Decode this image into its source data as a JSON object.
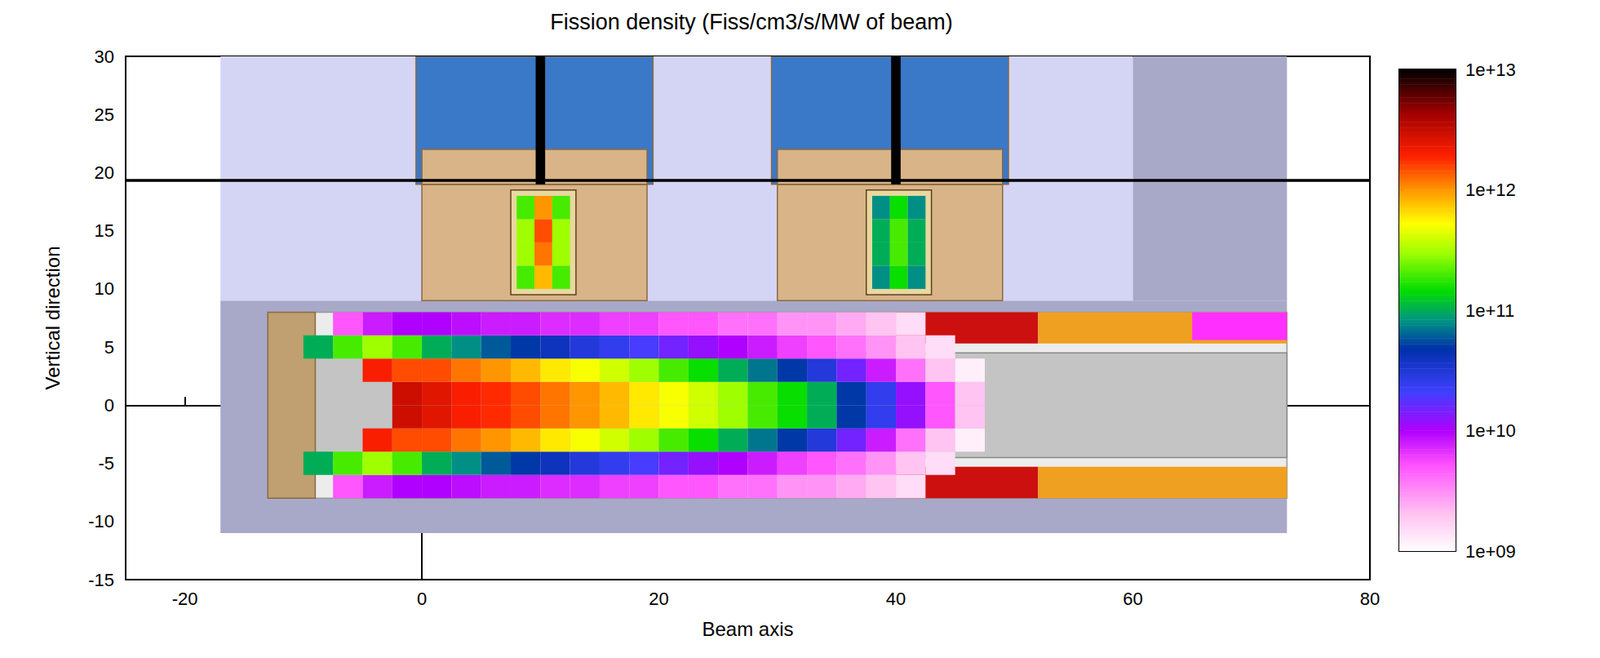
{
  "chart_data": {
    "type": "heatmap",
    "title": "Fission density (Fiss/cm3/s/MW of beam)",
    "x_label": "Beam axis",
    "y_label": "Vertical direction",
    "xlim": [
      -25,
      80
    ],
    "xticks": [
      -20,
      0,
      20,
      40,
      60,
      80
    ],
    "ylim": [
      -15,
      30
    ],
    "yticks": [
      -15,
      -10,
      -5,
      0,
      5,
      10,
      15,
      20,
      25,
      30
    ],
    "heatmaps": [
      {
        "x_edges": [
          -10,
          -7.5,
          -5,
          -2.5,
          0,
          2.5,
          5,
          7.5,
          10,
          12.5,
          15,
          17.5,
          20,
          22.5,
          25,
          27.5,
          30,
          32.5,
          35,
          37.5,
          40,
          42.5,
          45,
          47.5,
          50
        ],
        "y_edges": [
          -8,
          -6,
          -4,
          -2,
          0,
          2,
          4,
          6,
          8
        ],
        "values": [
          [
            null,
            5000000000.0,
            8000000000.0,
            10000000000.0,
            10000000000.0,
            9000000000.0,
            8000000000.0,
            8000000000.0,
            7000000000.0,
            7000000000.0,
            6000000000.0,
            6000000000.0,
            5000000000.0,
            5000000000.0,
            4000000000.0,
            4000000000.0,
            3000000000.0,
            3000000000.0,
            2500000000.0,
            2000000000.0,
            1500000000.0,
            null,
            null,
            null
          ],
          [
            100000000000.0,
            200000000000.0,
            300000000000.0,
            200000000000.0,
            100000000000.0,
            80000000000.0,
            60000000000.0,
            50000000000.0,
            40000000000.0,
            30000000000.0,
            25000000000.0,
            20000000000.0,
            15000000000.0,
            12000000000.0,
            10000000000.0,
            8000000000.0,
            6000000000.0,
            5000000000.0,
            4000000000.0,
            3000000000.0,
            2000000000.0,
            1500000000.0,
            null,
            null
          ],
          [
            null,
            null,
            2000000000000.0,
            1500000000000.0,
            1500000000000.0,
            1200000000000.0,
            1000000000000.0,
            800000000000.0,
            600000000000.0,
            500000000000.0,
            400000000000.0,
            300000000000.0,
            200000000000.0,
            150000000000.0,
            100000000000.0,
            70000000000.0,
            50000000000.0,
            30000000000.0,
            15000000000.0,
            8000000000.0,
            4000000000.0,
            2000000000.0,
            1200000000.0,
            null
          ],
          [
            null,
            null,
            null,
            3000000000000.0,
            2500000000000.0,
            2000000000000.0,
            1800000000000.0,
            1500000000000.0,
            1200000000000.0,
            1000000000000.0,
            800000000000.0,
            600000000000.0,
            500000000000.0,
            400000000000.0,
            300000000000.0,
            200000000000.0,
            150000000000.0,
            100000000000.0,
            50000000000.0,
            25000000000.0,
            12000000000.0,
            5000000000.0,
            2000000000.0,
            null
          ],
          [
            null,
            null,
            null,
            3000000000000.0,
            2500000000000.0,
            2000000000000.0,
            1800000000000.0,
            1500000000000.0,
            1200000000000.0,
            1000000000000.0,
            800000000000.0,
            600000000000.0,
            500000000000.0,
            400000000000.0,
            300000000000.0,
            200000000000.0,
            150000000000.0,
            100000000000.0,
            50000000000.0,
            25000000000.0,
            12000000000.0,
            5000000000.0,
            2000000000.0,
            null
          ],
          [
            null,
            null,
            2000000000000.0,
            1500000000000.0,
            1500000000000.0,
            1200000000000.0,
            1000000000000.0,
            800000000000.0,
            600000000000.0,
            500000000000.0,
            400000000000.0,
            300000000000.0,
            200000000000.0,
            150000000000.0,
            100000000000.0,
            70000000000.0,
            50000000000.0,
            30000000000.0,
            15000000000.0,
            8000000000.0,
            4000000000.0,
            2000000000.0,
            1200000000.0,
            null
          ],
          [
            100000000000.0,
            200000000000.0,
            300000000000.0,
            200000000000.0,
            100000000000.0,
            80000000000.0,
            60000000000.0,
            50000000000.0,
            40000000000.0,
            30000000000.0,
            25000000000.0,
            20000000000.0,
            15000000000.0,
            12000000000.0,
            10000000000.0,
            8000000000.0,
            6000000000.0,
            5000000000.0,
            4000000000.0,
            3000000000.0,
            2000000000.0,
            1500000000.0,
            null,
            null
          ],
          [
            null,
            5000000000.0,
            8000000000.0,
            10000000000.0,
            10000000000.0,
            9000000000.0,
            8000000000.0,
            8000000000.0,
            7000000000.0,
            7000000000.0,
            6000000000.0,
            6000000000.0,
            5000000000.0,
            5000000000.0,
            4000000000.0,
            4000000000.0,
            3000000000.0,
            3000000000.0,
            2500000000.0,
            2000000000.0,
            1500000000.0,
            null,
            null,
            null
          ]
        ]
      },
      {
        "x_edges": [
          8,
          9.5,
          11,
          12.5
        ],
        "y_edges": [
          10,
          12,
          14,
          16,
          18
        ],
        "values": [
          [
            200000000000.0,
            800000000000.0,
            200000000000.0
          ],
          [
            300000000000.0,
            1200000000000.0,
            300000000000.0
          ],
          [
            300000000000.0,
            1500000000000.0,
            300000000000.0
          ],
          [
            200000000000.0,
            1000000000000.0,
            200000000000.0
          ]
        ]
      },
      {
        "x_edges": [
          38,
          39.5,
          41,
          42.5
        ],
        "y_edges": [
          10,
          12,
          14,
          16,
          18
        ],
        "values": [
          [
            80000000000.0,
            150000000000.0,
            80000000000.0
          ],
          [
            100000000000.0,
            200000000000.0,
            100000000000.0
          ],
          [
            100000000000.0,
            200000000000.0,
            100000000000.0
          ],
          [
            80000000000.0,
            150000000000.0,
            80000000000.0
          ]
        ]
      }
    ],
    "colorbar": {
      "range": [
        1000000000.0,
        10000000000000.0
      ],
      "log": true,
      "ticks": [
        {
          "value": 1000000000.0,
          "label": "1e+09"
        },
        {
          "value": 10000000000.0,
          "label": "1e+10"
        },
        {
          "value": 100000000000.0,
          "label": "1e+11"
        },
        {
          "value": 1000000000000.0,
          "label": "1e+12"
        },
        {
          "value": 10000000000000.0,
          "label": "1e+13"
        }
      ]
    }
  }
}
